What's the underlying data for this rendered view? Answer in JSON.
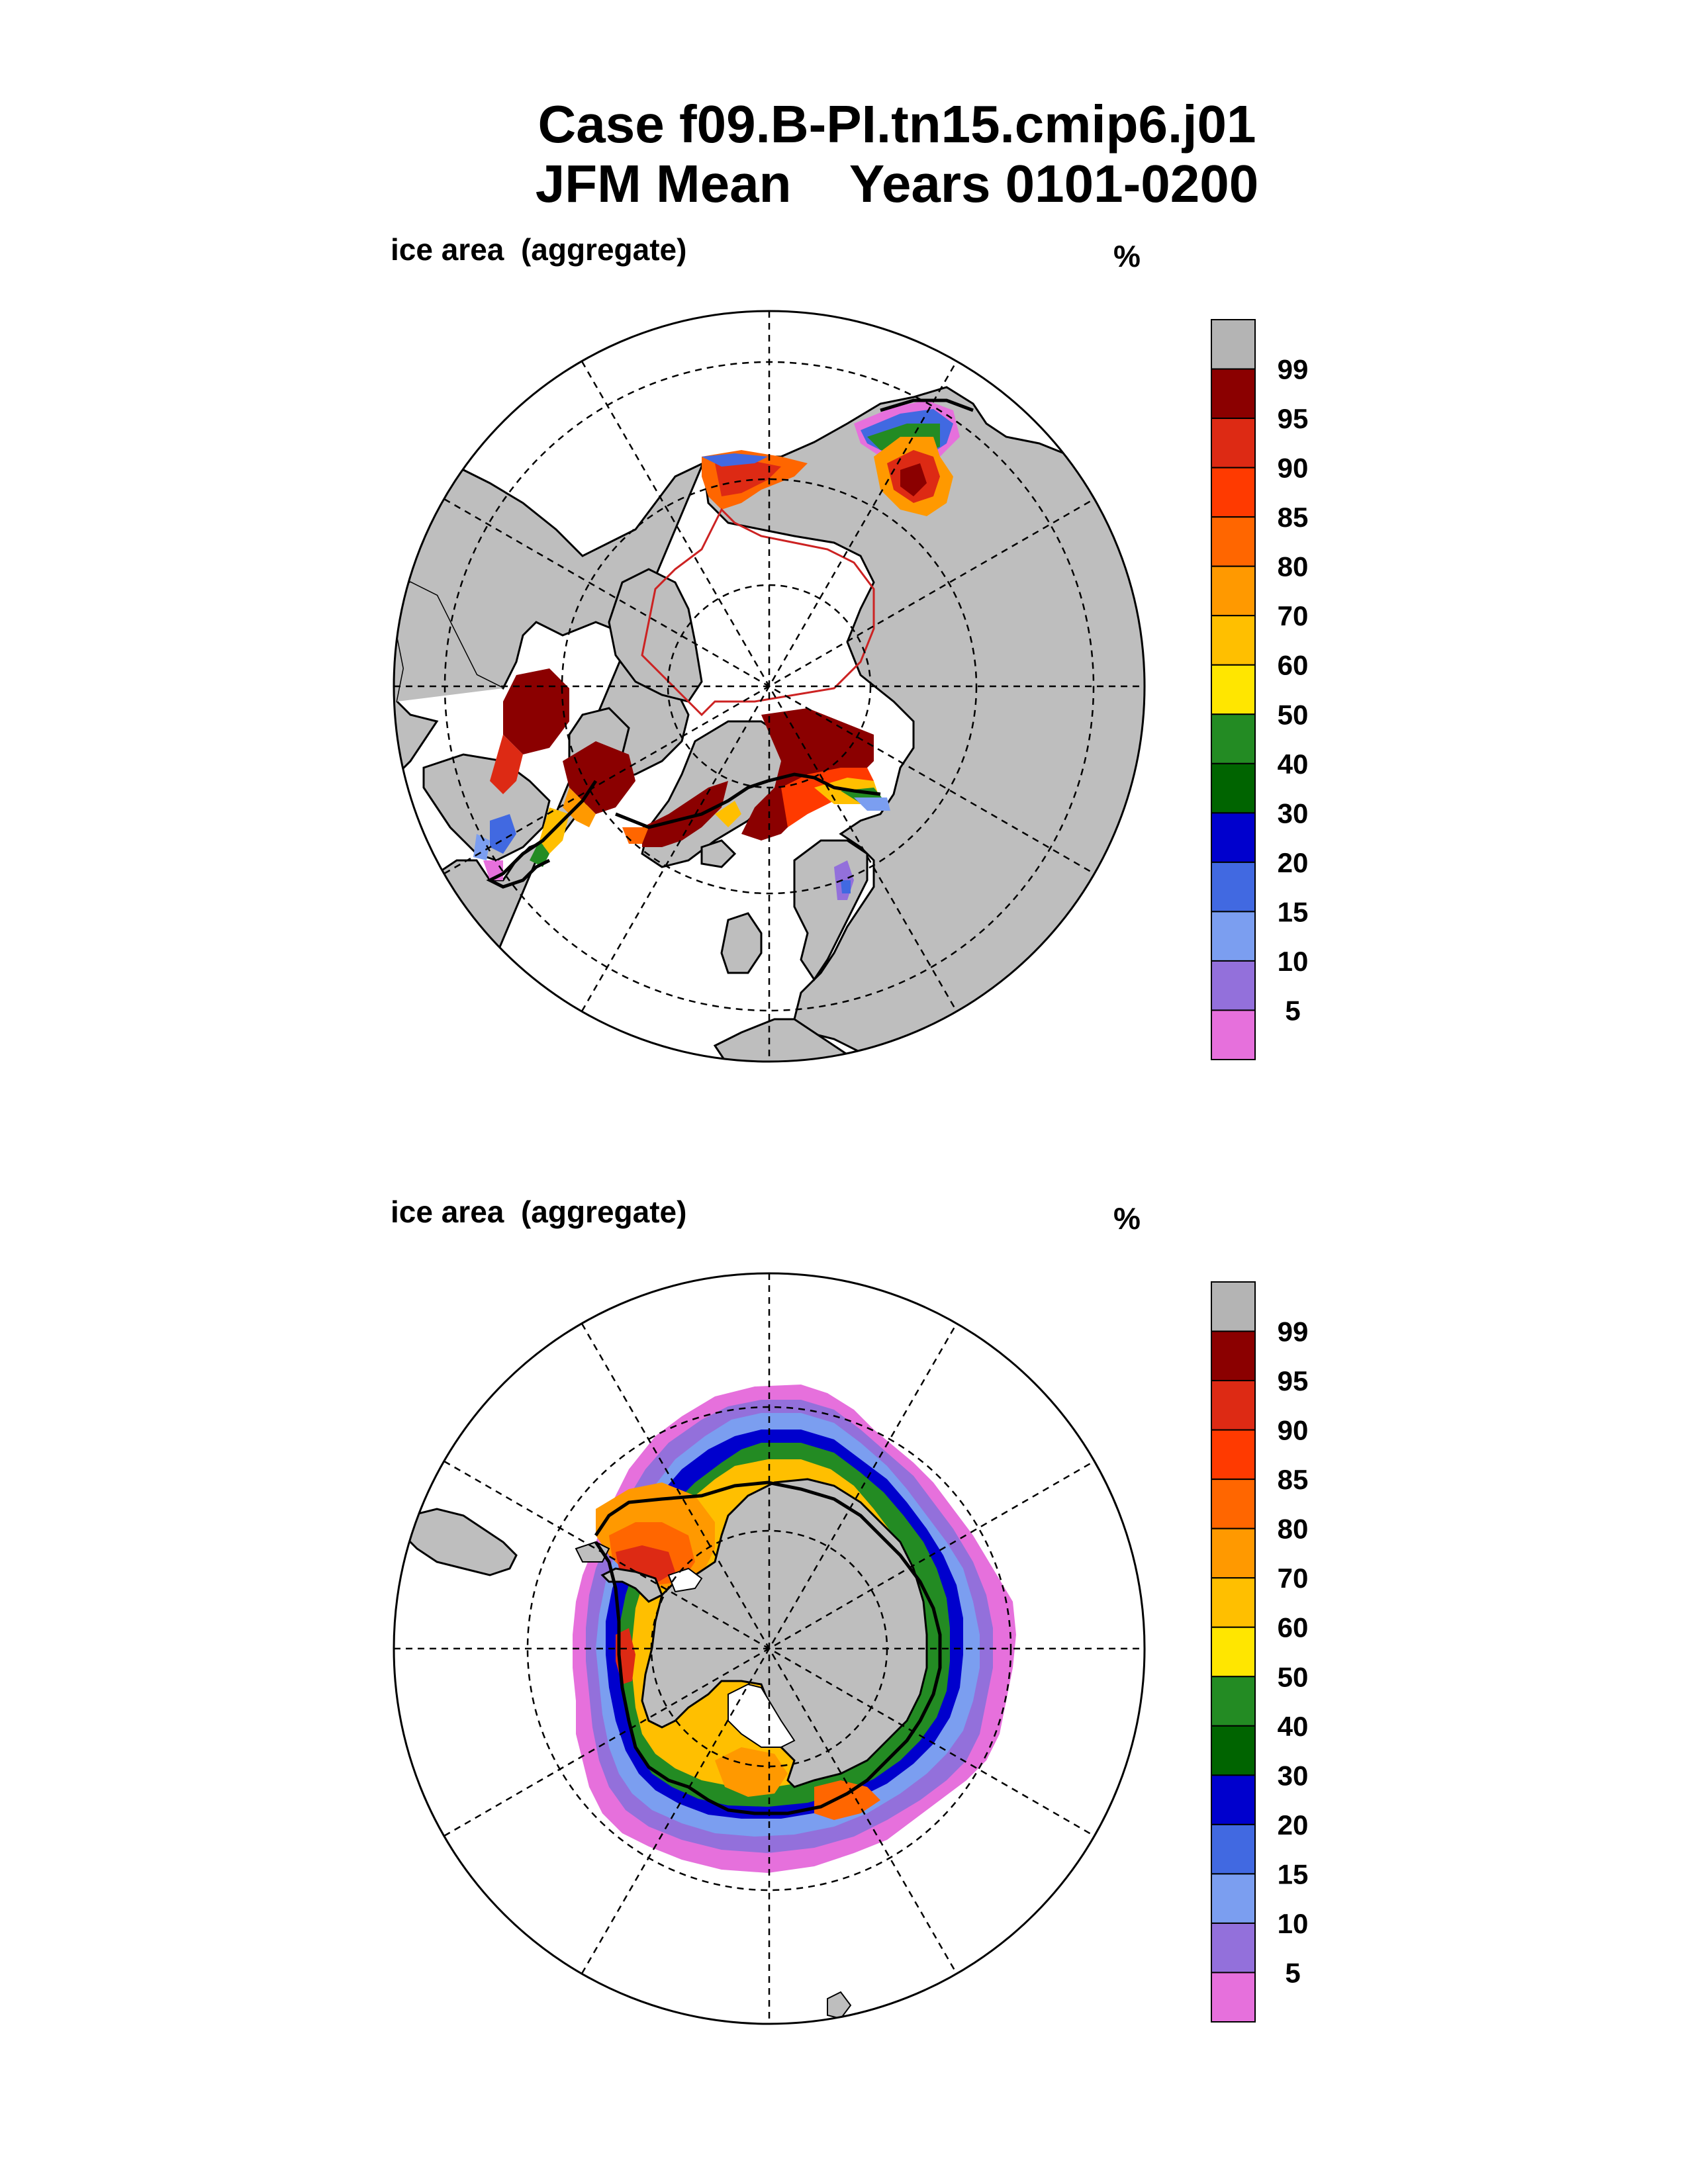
{
  "title": {
    "line1": "Case f09.B-PI.tn15.cmip6.j01",
    "line2": "JFM Mean    Years 0101-0200"
  },
  "panels": [
    {
      "label": "ice area  (aggregate)",
      "units": "%",
      "hemisphere": "north"
    },
    {
      "label": "ice area  (aggregate)",
      "units": "%",
      "hemisphere": "south"
    }
  ],
  "colorbar": {
    "labels": [
      "99",
      "95",
      "90",
      "85",
      "80",
      "70",
      "60",
      "50",
      "40",
      "30",
      "20",
      "15",
      "10",
      "5"
    ],
    "colors": [
      "#b4b4b4",
      "#8b0000",
      "#dd2a14",
      "#ff3a00",
      "#ff6600",
      "#ff9900",
      "#ffbf00",
      "#ffe600",
      "#238b23",
      "#006400",
      "#0000cd",
      "#4169e1",
      "#7b9ef0",
      "#9370db",
      "#e670dc"
    ]
  },
  "colors": {
    "land": "#bebebe",
    "ocean": "#ffffff",
    "ice_edge_line": "#000000",
    "coast_line": "#000000"
  }
}
